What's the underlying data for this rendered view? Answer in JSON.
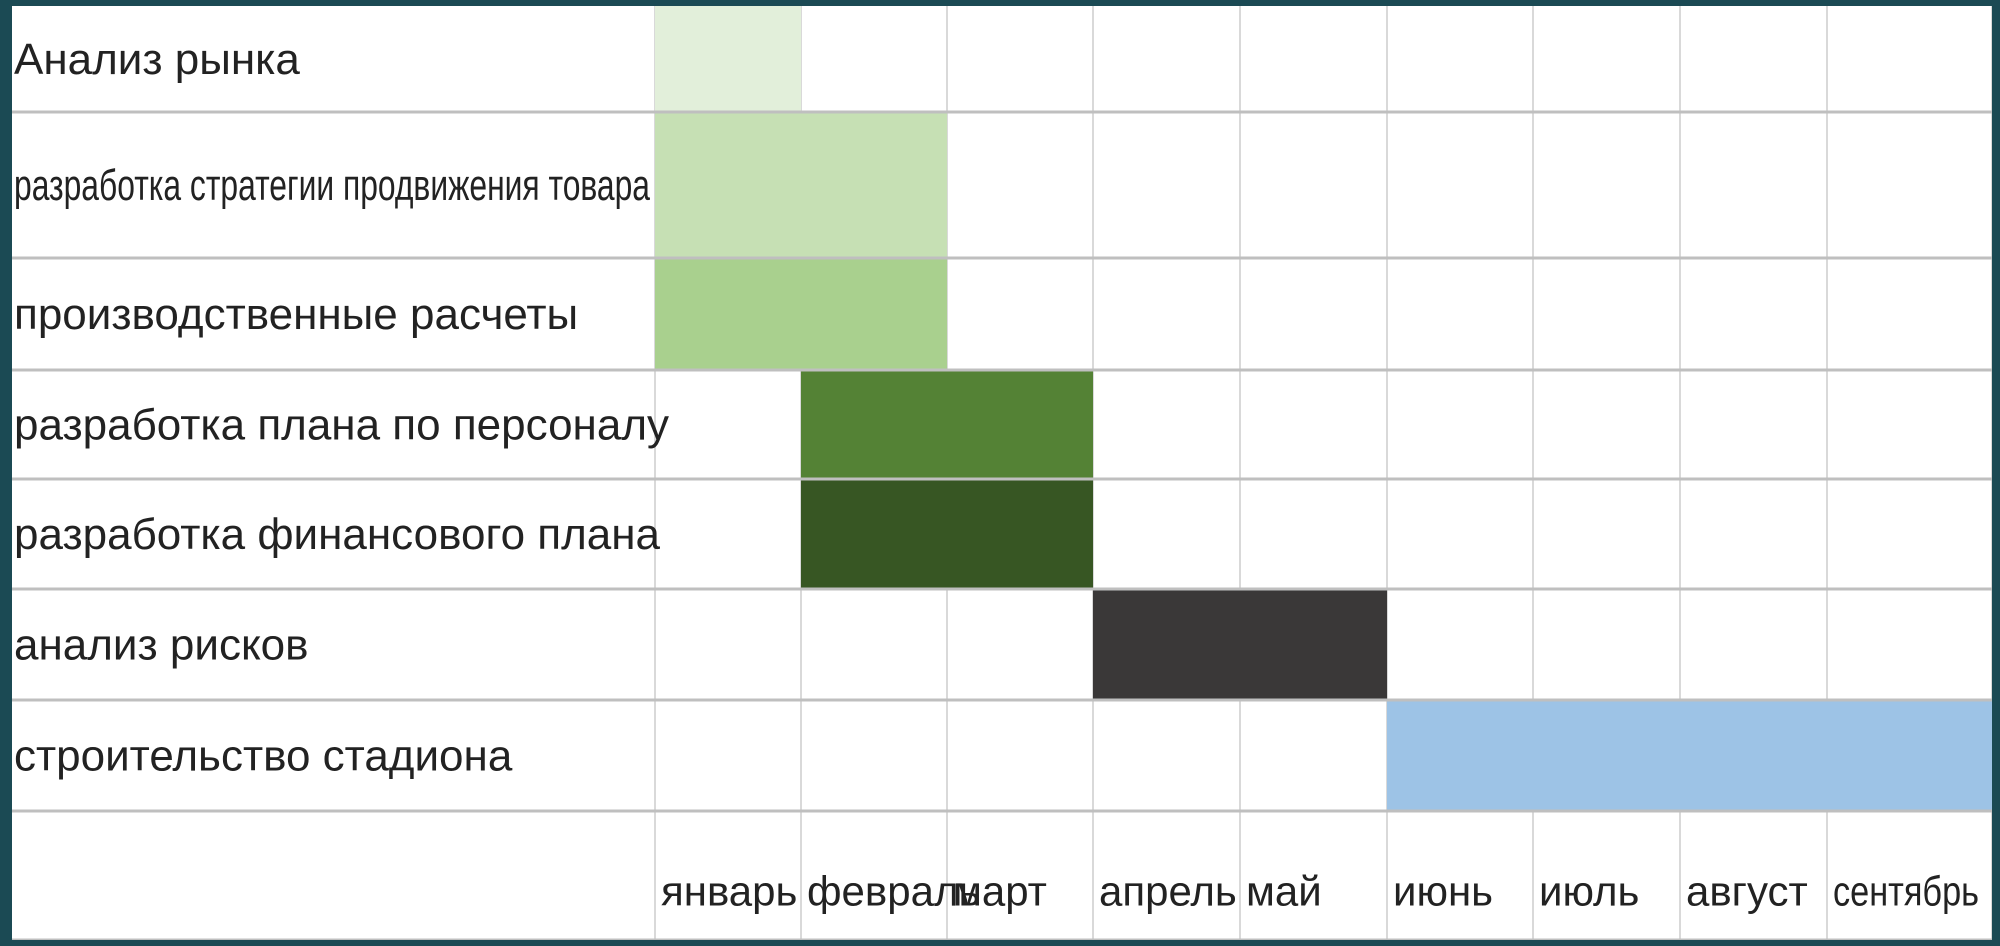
{
  "chart_data": {
    "type": "gantt",
    "title": "",
    "months": [
      "январь",
      "февраль",
      "март",
      "апрель",
      "май",
      "июнь",
      "июль",
      "август",
      "сентябрь"
    ],
    "tasks": [
      {
        "name": "Анализ рынка",
        "start": "январь",
        "end": "январь",
        "color": "#e2efda"
      },
      {
        "name": "разработка стратегии продвижения товара",
        "start": "январь",
        "end": "февраль",
        "color": "#c6e0b4"
      },
      {
        "name": "производственные расчеты",
        "start": "январь",
        "end": "февраль",
        "color": "#a9d08e"
      },
      {
        "name": "разработка плана по персоналу",
        "start": "февраль",
        "end": "март",
        "color": "#548235"
      },
      {
        "name": "разработка финансового плана",
        "start": "февраль",
        "end": "март",
        "color": "#375623"
      },
      {
        "name": "анализ рисков",
        "start": "апрель",
        "end": "май",
        "color": "#3a3838"
      },
      {
        "name": "строительство стадиона",
        "start": "июнь",
        "end": "сентябрь",
        "color": "#9dc3e6"
      }
    ],
    "grid": true
  },
  "colors": {
    "background": "#1b4a54",
    "grid": "#d9d9d9",
    "row_rule": "#bfbfbf"
  }
}
